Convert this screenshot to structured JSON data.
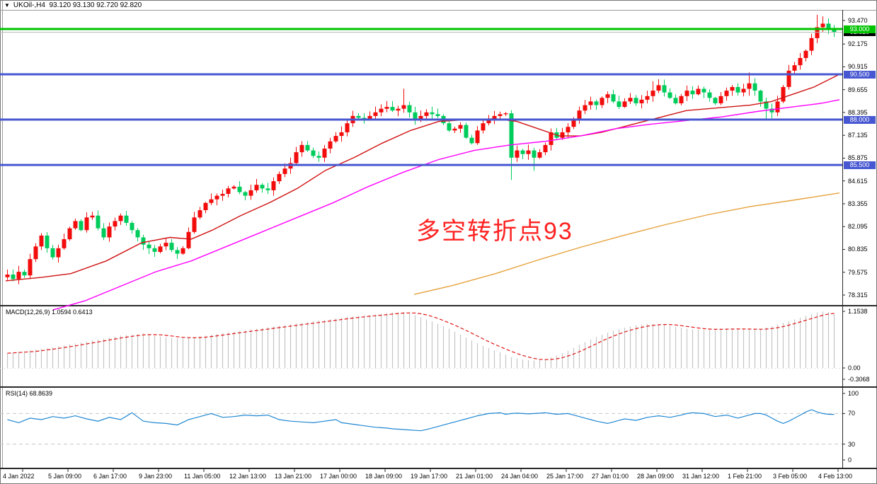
{
  "header": {
    "dropdown_icon": "▼",
    "symbol_label": "UKOil-,H4",
    "ohlc_values": "93.120 93.130 92.720 92.820"
  },
  "annotation": {
    "text": "多空转折点93",
    "color": "#ff2222"
  },
  "colors": {
    "bull": "#f20c0c",
    "bear": "#00cc5c",
    "ma_fast_red": "#cf1212",
    "ma_mid_magenta": "#ff00ff",
    "ma_slow_orange": "#e6a23c",
    "hline_green": "#00c300",
    "hline_blue": "#4757d1",
    "current_price_line": "#b8b8b8",
    "macd_hist": "#c4c4c4",
    "macd_signal": "#e01616",
    "rsi_line": "#1f87d2",
    "level_dash": "#c8c8c8",
    "border": "#2a2a2a",
    "frame": "#777777"
  },
  "price_axis": {
    "ticks": [
      "93.470",
      "92.175",
      "90.915",
      "89.655",
      "88.395",
      "87.135",
      "85.875",
      "84.615",
      "83.355",
      "82.095",
      "80.835",
      "79.575",
      "78.315"
    ],
    "badges": [
      {
        "label": "92.820",
        "price": 92.82,
        "bg": "#000000"
      },
      {
        "label": "93.000",
        "price": 93.0,
        "bg": "#00c300"
      },
      {
        "label": "90.500",
        "price": 90.5,
        "bg": "#4757d1"
      },
      {
        "label": "88.000",
        "price": 88.0,
        "bg": "#4757d1"
      },
      {
        "label": "85.500",
        "price": 85.5,
        "bg": "#4757d1"
      }
    ]
  },
  "time_axis": {
    "labels": [
      "4 Jan 2022",
      "5 Jan 09:00",
      "6 Jan 17:00",
      "9 Jan 23:00",
      "11 Jan 05:00",
      "12 Jan 13:00",
      "13 Jan 21:00",
      "17 Jan 00:00",
      "18 Jan 09:00",
      "19 Jan 17:00",
      "21 Jan 01:00",
      "24 Jan 04:00",
      "25 Jan 17:00",
      "27 Jan 01:00",
      "28 Jan 09:00",
      "31 Jan 12:00",
      "1 Feb 21:00",
      "3 Feb 05:00",
      "4 Feb 13:00"
    ]
  },
  "chart_data": [
    {
      "type": "candlestick",
      "title": "UKOil- H4 price",
      "ylim": [
        78.315,
        93.47
      ],
      "y_ticks": [
        93.47,
        92.175,
        90.915,
        89.655,
        88.395,
        87.135,
        85.875,
        84.615,
        83.355,
        82.095,
        80.835,
        79.575,
        78.315
      ],
      "current_price": 92.82,
      "first_open": 79.3,
      "closes": [
        79.45,
        79.2,
        79.6,
        79.4,
        80.3,
        81.0,
        81.6,
        80.9,
        80.4,
        80.9,
        81.4,
        82.0,
        82.4,
        81.9,
        82.6,
        82.7,
        82.0,
        81.5,
        82.1,
        82.4,
        82.7,
        82.3,
        81.9,
        81.5,
        81.1,
        80.9,
        80.7,
        81.0,
        81.2,
        80.8,
        80.6,
        80.9,
        81.8,
        82.6,
        83.0,
        83.4,
        83.6,
        83.8,
        83.9,
        84.2,
        84.3,
        84.0,
        83.8,
        84.1,
        84.4,
        84.2,
        84.1,
        84.6,
        85.0,
        85.3,
        85.6,
        86.2,
        86.6,
        86.3,
        86.0,
        85.9,
        86.4,
        86.8,
        87.1,
        87.3,
        87.8,
        88.2,
        88.1,
        88.0,
        88.2,
        88.4,
        88.6,
        88.7,
        88.5,
        88.6,
        88.8,
        88.4,
        88.0,
        88.2,
        88.4,
        88.3,
        88.2,
        87.8,
        87.4,
        87.5,
        87.7,
        87.0,
        86.7,
        87.4,
        87.8,
        88.0,
        88.2,
        88.3,
        88.35,
        85.9,
        86.3,
        86.1,
        86.3,
        85.9,
        86.2,
        86.6,
        87.3,
        87.0,
        87.3,
        87.6,
        88.0,
        88.5,
        88.8,
        89.0,
        88.8,
        89.2,
        89.4,
        89.0,
        88.7,
        89.0,
        89.2,
        88.9,
        89.1,
        89.3,
        89.6,
        89.9,
        89.5,
        89.2,
        88.9,
        89.3,
        89.6,
        89.4,
        89.7,
        89.5,
        89.2,
        88.9,
        89.3,
        89.6,
        89.8,
        89.5,
        89.7,
        90.0,
        89.6,
        89.0,
        88.6,
        88.4,
        89.0,
        89.8,
        90.7,
        91.0,
        91.4,
        91.8,
        92.5,
        93.1,
        93.3,
        93.0,
        92.82
      ],
      "wick_overrides": {
        "70": [
          0.8,
          0.1
        ],
        "89": [
          0.05,
          0.9
        ],
        "93": [
          0.1,
          0.6
        ],
        "114": [
          0.3,
          0.1
        ],
        "131": [
          0.3,
          0.1
        ],
        "134": [
          0.1,
          0.3
        ],
        "143": [
          0.45,
          0.1
        ],
        "144": [
          0.2,
          0.1
        ]
      },
      "hlines": [
        {
          "price": 93.0,
          "color": "#00c300",
          "width": 3
        },
        {
          "price": 90.5,
          "color": "#4757d1",
          "width": 3
        },
        {
          "price": 88.0,
          "color": "#4757d1",
          "width": 3
        },
        {
          "price": 85.5,
          "color": "#4757d1",
          "width": 3
        }
      ],
      "series": [
        {
          "name": "ma-fast-red",
          "points": [
            [
              8,
              79.1
            ],
            [
              60,
              79.3
            ],
            [
              100,
              79.5
            ],
            [
              150,
              80.2
            ],
            [
              200,
              81.2
            ],
            [
              240,
              81.5
            ],
            [
              270,
              81.4
            ],
            [
              300,
              81.9
            ],
            [
              340,
              82.7
            ],
            [
              380,
              83.4
            ],
            [
              420,
              84.2
            ],
            [
              460,
              85.2
            ],
            [
              500,
              85.9
            ],
            [
              540,
              86.7
            ],
            [
              580,
              87.4
            ],
            [
              620,
              87.9
            ],
            [
              660,
              88.0
            ],
            [
              700,
              88.05
            ],
            [
              730,
              87.9
            ],
            [
              760,
              87.5
            ],
            [
              790,
              87.1
            ],
            [
              820,
              87.1
            ],
            [
              850,
              87.3
            ],
            [
              880,
              87.6
            ],
            [
              910,
              87.9
            ],
            [
              940,
              88.2
            ],
            [
              970,
              88.5
            ],
            [
              1000,
              88.6
            ],
            [
              1030,
              88.7
            ],
            [
              1060,
              88.8
            ],
            [
              1090,
              89.0
            ],
            [
              1120,
              89.4
            ],
            [
              1150,
              89.8
            ],
            [
              1186,
              90.5
            ]
          ]
        },
        {
          "name": "ma-mid-magenta",
          "points": [
            [
              75,
              77.5
            ],
            [
              120,
              78.0
            ],
            [
              170,
              78.8
            ],
            [
              220,
              79.6
            ],
            [
              270,
              80.2
            ],
            [
              320,
              81.0
            ],
            [
              370,
              81.8
            ],
            [
              420,
              82.6
            ],
            [
              470,
              83.4
            ],
            [
              520,
              84.3
            ],
            [
              570,
              85.1
            ],
            [
              620,
              85.8
            ],
            [
              670,
              86.3
            ],
            [
              720,
              86.6
            ],
            [
              770,
              86.8
            ],
            [
              820,
              87.1
            ],
            [
              870,
              87.5
            ],
            [
              920,
              87.75
            ],
            [
              970,
              87.95
            ],
            [
              1020,
              88.15
            ],
            [
              1070,
              88.45
            ],
            [
              1120,
              88.7
            ],
            [
              1160,
              88.9
            ],
            [
              1186,
              89.1
            ]
          ]
        },
        {
          "name": "ma-slow-orange",
          "points": [
            [
              585,
              78.35
            ],
            [
              640,
              78.85
            ],
            [
              700,
              79.5
            ],
            [
              760,
              80.25
            ],
            [
              820,
              80.95
            ],
            [
              880,
              81.6
            ],
            [
              940,
              82.2
            ],
            [
              1000,
              82.75
            ],
            [
              1060,
              83.2
            ],
            [
              1120,
              83.55
            ],
            [
              1186,
              83.95
            ]
          ]
        }
      ]
    },
    {
      "type": "bar",
      "label": "MACD(12,26,9) 1.0594 0.6413",
      "axis_ticks": [
        {
          "label": "1.1538",
          "value": 1.1538
        },
        {
          "label": "0.00",
          "value": 0.0
        },
        {
          "label": "-0.3068",
          "value": -0.3068
        }
      ],
      "ylim": [
        -0.3068,
        1.1538
      ],
      "values": [
        0.3,
        0.315,
        0.33,
        0.345,
        0.36,
        0.375,
        0.39,
        0.405,
        0.42,
        0.44,
        0.46,
        0.48,
        0.5,
        0.52,
        0.54,
        0.56,
        0.58,
        0.6,
        0.62,
        0.64,
        0.66,
        0.67,
        0.68,
        0.69,
        0.7,
        0.68,
        0.66,
        0.64,
        0.625,
        0.61,
        0.6,
        0.61,
        0.62,
        0.63,
        0.645,
        0.66,
        0.68,
        0.695,
        0.71,
        0.725,
        0.74,
        0.755,
        0.77,
        0.785,
        0.8,
        0.815,
        0.83,
        0.845,
        0.86,
        0.875,
        0.89,
        0.905,
        0.92,
        0.935,
        0.95,
        0.965,
        0.98,
        0.995,
        1.01,
        1.025,
        1.04,
        1.05,
        1.06,
        1.07,
        1.08,
        1.09,
        1.1,
        1.12,
        1.13,
        1.135,
        1.14,
        1.11,
        1.08,
        1.035,
        0.99,
        0.95,
        0.9,
        0.85,
        0.8,
        0.74,
        0.68,
        0.62,
        0.56,
        0.505,
        0.45,
        0.405,
        0.36,
        0.32,
        0.27,
        0.22,
        0.195,
        0.17,
        0.16,
        0.15,
        0.165,
        0.18,
        0.215,
        0.25,
        0.3,
        0.35,
        0.41,
        0.47,
        0.525,
        0.58,
        0.63,
        0.68,
        0.72,
        0.76,
        0.79,
        0.82,
        0.845,
        0.87,
        0.885,
        0.9,
        0.895,
        0.89,
        0.875,
        0.86,
        0.84,
        0.82,
        0.8,
        0.79,
        0.785,
        0.78,
        0.785,
        0.79,
        0.8,
        0.805,
        0.8,
        0.79,
        0.785,
        0.78,
        0.785,
        0.8,
        0.825,
        0.85,
        0.885,
        0.92,
        0.955,
        0.99,
        1.025,
        1.06,
        1.095,
        1.13,
        1.15,
        1.14,
        1.1
      ],
      "signal_smoothing_window": 6
    },
    {
      "type": "line",
      "label": "RSI(14) 68.8639",
      "axis_ticks": [
        {
          "label": "100",
          "value": 100
        },
        {
          "label": "70",
          "value": 70
        },
        {
          "label": "30",
          "value": 30
        },
        {
          "label": "0",
          "value": 0
        }
      ],
      "levels": [
        70,
        30
      ],
      "ylim": [
        0,
        100
      ],
      "values": [
        62,
        60,
        58,
        61,
        64,
        63,
        62,
        64,
        66,
        65,
        64,
        65.5,
        67,
        65,
        63,
        61.5,
        60,
        62.5,
        65,
        63.5,
        62,
        66.5,
        71,
        65.5,
        60,
        59,
        58,
        57.5,
        57,
        56,
        55,
        58.5,
        62,
        64,
        66,
        68,
        70,
        67.5,
        65,
        65.5,
        66,
        67,
        68,
        67.5,
        67,
        67.5,
        68,
        65,
        62,
        61,
        60,
        59.5,
        59,
        58.5,
        58,
        59,
        60,
        61,
        62,
        58,
        57,
        56,
        55,
        54,
        53,
        52,
        51.5,
        51,
        50,
        49.5,
        49,
        48.5,
        48,
        47.5,
        49,
        51,
        53,
        55,
        57,
        59,
        61,
        63,
        65,
        67,
        68.5,
        70,
        70.5,
        71,
        69,
        70,
        70.5,
        70,
        69.5,
        70,
        70.5,
        71,
        70,
        69,
        69.5,
        70,
        68,
        66,
        64,
        62,
        60,
        58.5,
        57,
        59,
        61,
        63,
        62,
        61,
        63,
        65,
        66,
        67,
        66,
        65,
        66.5,
        68,
        70,
        71,
        70.5,
        70,
        68,
        66,
        67,
        68,
        66,
        64,
        66,
        68,
        70,
        70,
        68,
        64,
        60,
        57,
        60,
        64,
        68,
        72,
        75,
        72,
        70,
        69,
        68.86
      ]
    }
  ]
}
